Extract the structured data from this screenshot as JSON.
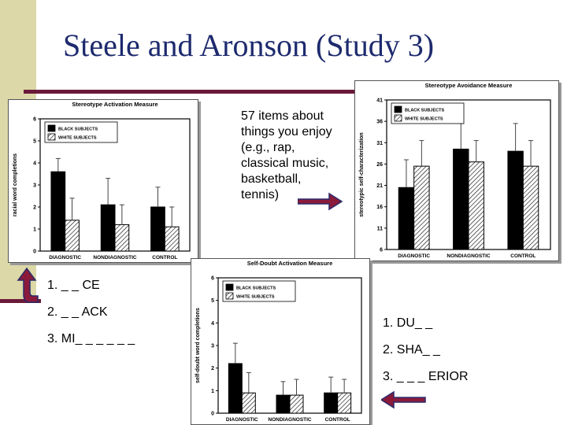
{
  "slide": {
    "title": "Steele and Aronson (Study 3)",
    "note_lines": [
      "57 items about",
      "things you enjoy",
      "(e.g., rap,",
      "classical music,",
      "basketball,",
      "tennis)"
    ],
    "list_left": [
      "1. _ _ CE",
      "2. _ _ ACK",
      "3. MI_ _ _ _ _ _"
    ],
    "list_right": [
      "1. DU_ _",
      "2. SHA_ _",
      "3. _ _ _ ERIOR"
    ],
    "colors": {
      "title": "#1d2a6e",
      "accent_rule": "#6b1a3a",
      "sidebar": "#dcd8a8",
      "arrow": "#8b1a3a"
    }
  },
  "chart_data": [
    {
      "id": "activation",
      "type": "bar",
      "title": "Stereotype Activation Measure",
      "ylabel": "racial word completions",
      "categories": [
        "DIAGNOSTIC",
        "NONDIAGNOSTIC",
        "CONTROL"
      ],
      "series": [
        {
          "name": "BLACK SUBJECTS",
          "values": [
            3.6,
            2.1,
            2.0
          ],
          "errors": [
            0.6,
            1.2,
            0.9
          ],
          "pattern": "solid"
        },
        {
          "name": "WHITE SUBJECTS",
          "values": [
            1.4,
            1.2,
            1.1
          ],
          "errors": [
            1.0,
            0.9,
            0.9
          ],
          "pattern": "hatch"
        }
      ],
      "ylim": [
        0,
        6
      ],
      "yticks": [
        0,
        1,
        2,
        3,
        4,
        5,
        6
      ],
      "legend": "top-left"
    },
    {
      "id": "avoidance",
      "type": "bar",
      "title": "Stereotype Avoidance Measure",
      "ylabel": "stereotypic self-characterization",
      "categories": [
        "DIAGNOSTIC",
        "NONDIAGNOSTIC",
        "CONTROL"
      ],
      "series": [
        {
          "name": "BLACK SUBJECTS",
          "values": [
            20.5,
            29.5,
            29.0
          ],
          "errors": [
            6.5,
            6.0,
            6.5
          ],
          "pattern": "solid"
        },
        {
          "name": "WHITE SUBJECTS",
          "values": [
            25.5,
            26.5,
            25.5
          ],
          "errors": [
            6.0,
            5.0,
            6.0
          ],
          "pattern": "hatch"
        }
      ],
      "ylim": [
        6,
        41
      ],
      "yticks": [
        6,
        11,
        16,
        21,
        26,
        31,
        36,
        41
      ],
      "legend": "top-left"
    },
    {
      "id": "selfdoubt",
      "type": "bar",
      "title": "Self-Doubt Activation Measure",
      "ylabel": "self-doubt word completions",
      "categories": [
        "DIAGNOSTIC",
        "NONDIAGNOSTIC",
        "CONTROL"
      ],
      "series": [
        {
          "name": "BLACK SUBJECTS",
          "values": [
            2.2,
            0.8,
            0.9
          ],
          "errors": [
            0.9,
            0.6,
            0.7
          ],
          "pattern": "solid"
        },
        {
          "name": "WHITE SUBJECTS",
          "values": [
            0.9,
            0.8,
            0.9
          ],
          "errors": [
            0.9,
            0.7,
            0.6
          ],
          "pattern": "hatch"
        }
      ],
      "ylim": [
        0,
        6
      ],
      "yticks": [
        0,
        1,
        2,
        3,
        4,
        5,
        6
      ],
      "legend": "top-left"
    }
  ]
}
